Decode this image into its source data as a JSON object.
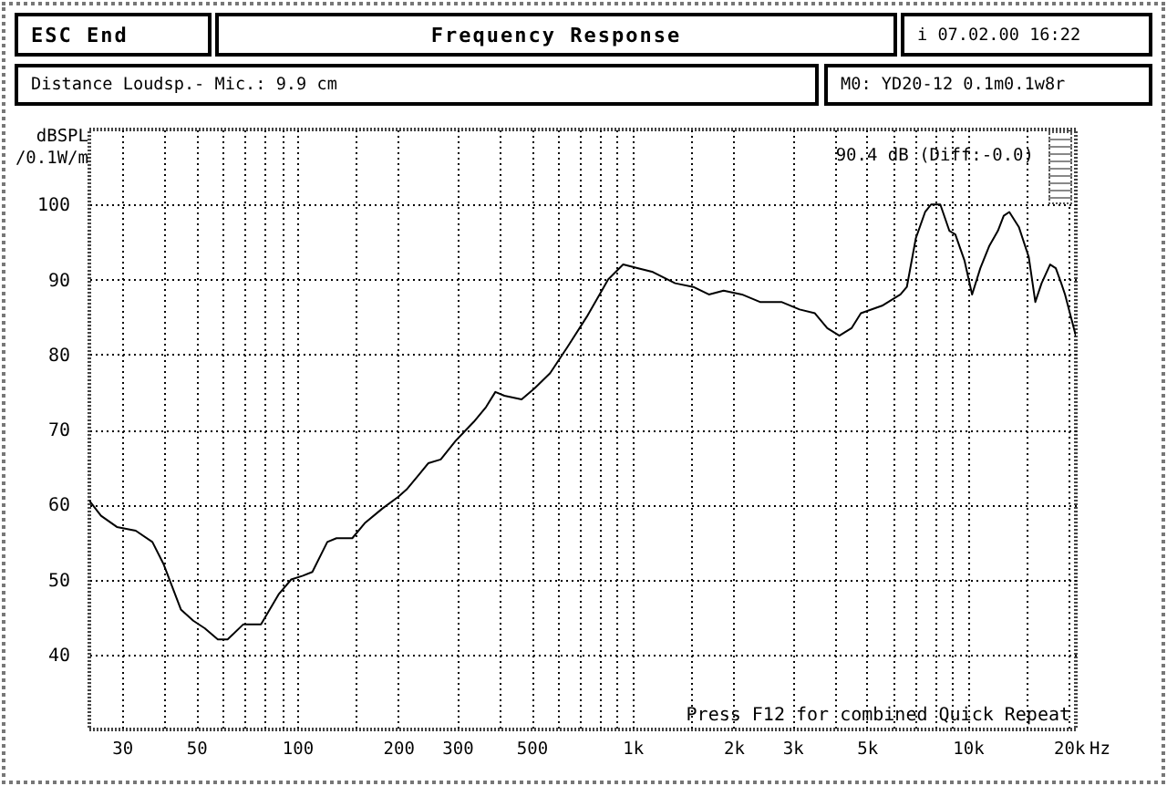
{
  "chart_data": {
    "type": "line",
    "title": "Frequency Response",
    "xlabel": "Hz",
    "ylabel": "dBSPL /0.1W/m",
    "annotations": [
      "ESC End",
      "i 07.02.00 16:22",
      "Distance Loudsp.- Mic.: 9.9 cm",
      "M0: YD20-12 0.1m0.1w8r",
      "90.4 dB (Diff:-0.0)",
      "Press F12 for combined Quick Repeat"
    ],
    "log": "x",
    "grid": true,
    "xlim": [
      24,
      21000
    ],
    "ylim": [
      30,
      110
    ],
    "xticks": [
      30,
      {
        "value": 40,
        "label": null
      },
      50,
      {
        "value": 60,
        "label": null
      },
      {
        "value": 70,
        "label": null
      },
      {
        "value": 80,
        "label": null
      },
      {
        "value": 90,
        "label": null
      },
      100,
      {
        "value": 150,
        "label": null
      },
      200,
      300,
      {
        "value": 400,
        "label": null
      },
      500,
      {
        "value": 600,
        "label": null
      },
      {
        "value": 700,
        "label": null
      },
      {
        "value": 800,
        "label": null
      },
      {
        "value": 900,
        "label": null
      },
      {
        "value": 1000,
        "label": "1k"
      },
      {
        "value": 1500,
        "label": null
      },
      {
        "value": 2000,
        "label": "2k"
      },
      {
        "value": 3000,
        "label": "3k"
      },
      {
        "value": 4000,
        "label": null
      },
      {
        "value": 5000,
        "label": "5k"
      },
      {
        "value": 6000,
        "label": null
      },
      {
        "value": 7000,
        "label": null
      },
      {
        "value": 8000,
        "label": null
      },
      {
        "value": 9000,
        "label": null
      },
      {
        "value": 10000,
        "label": "10k"
      },
      {
        "value": 15000,
        "label": null
      },
      {
        "value": 20000,
        "label": "20k"
      }
    ],
    "yticks": [
      40,
      50,
      60,
      70,
      80,
      90,
      100
    ],
    "x": [
      24,
      26,
      29,
      33,
      37,
      40,
      45,
      49,
      53,
      58,
      62,
      69,
      78,
      88,
      96,
      104,
      111,
      123,
      131,
      146,
      159,
      180,
      200,
      212,
      231,
      246,
      268,
      297,
      336,
      366,
      390,
      415,
      467,
      511,
      568,
      640,
      730,
      810,
      846,
      938,
      1040,
      1150,
      1340,
      1520,
      1690,
      1870,
      2120,
      2400,
      2780,
      3150,
      3500,
      3810,
      4140,
      4500,
      4800,
      5550,
      6300,
      6580,
      7000,
      7460,
      7770,
      8280,
      8810,
      9180,
      9780,
      10300,
      10900,
      11600,
      12300,
      12800,
      13300,
      14200,
      15200,
      15900,
      16600,
      17600,
      18300,
      19000,
      19500,
      21000
    ],
    "series": [
      {
        "color": "#000000",
        "values": [
          60.5,
          58.5,
          57,
          56.5,
          55,
          52,
          46,
          44.5,
          43.5,
          42,
          42,
          44,
          44,
          48,
          50,
          50.5,
          51,
          55,
          55.5,
          55.5,
          57.5,
          59.5,
          61,
          62,
          64,
          65.5,
          66,
          68.5,
          71,
          73,
          75,
          74.5,
          74,
          75.5,
          77.5,
          81,
          85,
          88.5,
          90,
          92,
          91.5,
          91,
          89.5,
          89,
          88,
          88.5,
          88,
          87,
          87,
          86,
          85.5,
          83.5,
          82.5,
          83.5,
          85.5,
          86.5,
          88,
          89,
          95.5,
          99,
          100,
          100,
          96.5,
          96,
          92.5,
          88,
          91.5,
          94.5,
          96.5,
          98.5,
          99,
          97,
          93,
          87,
          89.5,
          92,
          91.5,
          89.5,
          88,
          82.5
        ]
      }
    ]
  }
}
